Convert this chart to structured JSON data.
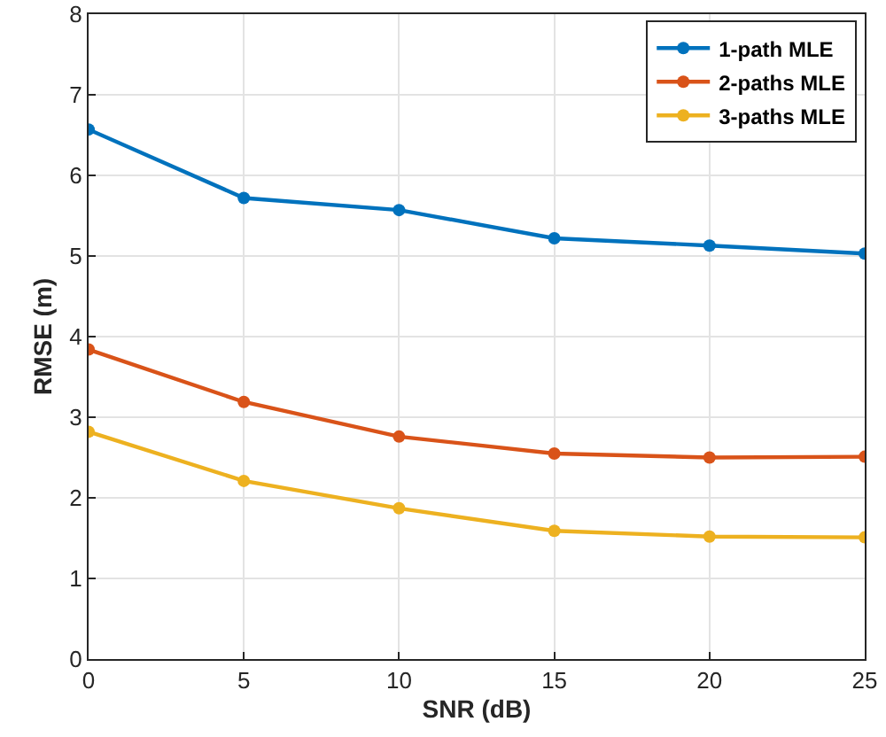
{
  "chart_data": {
    "type": "line",
    "xlabel": "SNR (dB)",
    "ylabel": "RMSE (m)",
    "x": [
      0,
      5,
      10,
      15,
      20,
      25
    ],
    "series": [
      {
        "name": "1-path MLE",
        "color": "#0072bd",
        "values": [
          6.57,
          5.72,
          5.57,
          5.22,
          5.13,
          5.03
        ]
      },
      {
        "name": "2-paths MLE",
        "color": "#d95319",
        "values": [
          3.84,
          3.19,
          2.76,
          2.55,
          2.5,
          2.51
        ]
      },
      {
        "name": "3-paths MLE",
        "color": "#edb120",
        "values": [
          2.82,
          2.21,
          1.87,
          1.59,
          1.52,
          1.51
        ]
      }
    ],
    "xlim": [
      0,
      25
    ],
    "xticks": [
      0,
      5,
      10,
      15,
      20,
      25
    ],
    "ylim": [
      0,
      8
    ],
    "yticks": [
      0,
      1,
      2,
      3,
      4,
      5,
      6,
      7,
      8
    ],
    "grid": true,
    "legend": "top right",
    "marker": "circle",
    "line_style": "solid"
  }
}
